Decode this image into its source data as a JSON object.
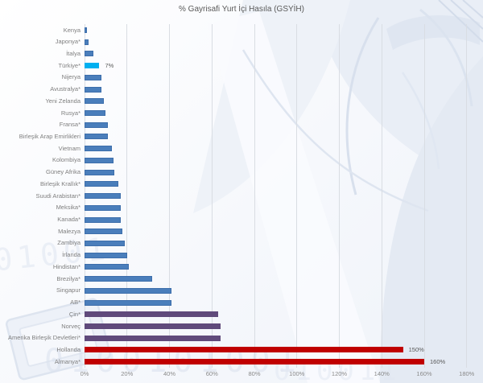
{
  "chart_data": {
    "type": "bar",
    "orientation": "horizontal",
    "title": "% Gayrisafi Yurt İçi Hasıla (GSYİH)",
    "xlabel": "",
    "ylabel": "",
    "xlim": [
      0,
      180
    ],
    "tick_step": 20,
    "tick_labels": [
      "0%",
      "20%",
      "40%",
      "60%",
      "80%",
      "100%",
      "120%",
      "140%",
      "160%",
      "180%"
    ],
    "grid": true,
    "legend": "none",
    "bars": [
      {
        "label": "Kenya",
        "value": 1,
        "color_role": "default"
      },
      {
        "label": "Japonya*",
        "value": 2,
        "color_role": "default"
      },
      {
        "label": "İtalya",
        "value": 4,
        "color_role": "default"
      },
      {
        "label": "Türkiye*",
        "value": 7,
        "color_role": "highlight",
        "data_label": "7%"
      },
      {
        "label": "Nijerya",
        "value": 8,
        "color_role": "default"
      },
      {
        "label": "Avustralya*",
        "value": 8,
        "color_role": "default"
      },
      {
        "label": "Yeni Zelanda",
        "value": 9,
        "color_role": "default"
      },
      {
        "label": "Rusya*",
        "value": 10,
        "color_role": "default"
      },
      {
        "label": "Fransa*",
        "value": 11,
        "color_role": "default"
      },
      {
        "label": "Birleşik Arap Emirlikleri",
        "value": 11,
        "color_role": "default"
      },
      {
        "label": "Vietnam",
        "value": 13,
        "color_role": "default"
      },
      {
        "label": "Kolombiya",
        "value": 13.5,
        "color_role": "default"
      },
      {
        "label": "Güney Afrika",
        "value": 14,
        "color_role": "default"
      },
      {
        "label": "Birleşik Krallık*",
        "value": 16,
        "color_role": "default"
      },
      {
        "label": "Suudi Arabistan*",
        "value": 17,
        "color_role": "default"
      },
      {
        "label": "Meksika*",
        "value": 17,
        "color_role": "default"
      },
      {
        "label": "Kanada*",
        "value": 17,
        "color_role": "default"
      },
      {
        "label": "Malezya",
        "value": 18,
        "color_role": "default"
      },
      {
        "label": "Zambiya",
        "value": 19,
        "color_role": "default"
      },
      {
        "label": "İrlanda",
        "value": 20,
        "color_role": "default"
      },
      {
        "label": "Hindistan*",
        "value": 21,
        "color_role": "default"
      },
      {
        "label": "Brezilya*",
        "value": 32,
        "color_role": "default"
      },
      {
        "label": "Singapur",
        "value": 41,
        "color_role": "default"
      },
      {
        "label": "AB*",
        "value": 41,
        "color_role": "default"
      },
      {
        "label": "Çin*",
        "value": 63,
        "color_role": "purple"
      },
      {
        "label": "Norveç",
        "value": 64,
        "color_role": "purple"
      },
      {
        "label": "Amerika Birleşik Devletleri*",
        "value": 64,
        "color_role": "purple"
      },
      {
        "label": "Hollanda",
        "value": 150,
        "color_role": "red",
        "data_label": "150%"
      },
      {
        "label": "Almanya*",
        "value": 160,
        "color_role": "red",
        "data_label": "160%"
      }
    ],
    "colors": {
      "default": "#4a7ebb",
      "highlight": "#00b0f0",
      "purple": "#604a7b",
      "red": "#c00000",
      "gridline": "#d9dde3",
      "axis_text": "#8a8a8a",
      "category_text": "#7f7f7f",
      "title_text": "#595959",
      "data_label_text": "#595959"
    }
  }
}
